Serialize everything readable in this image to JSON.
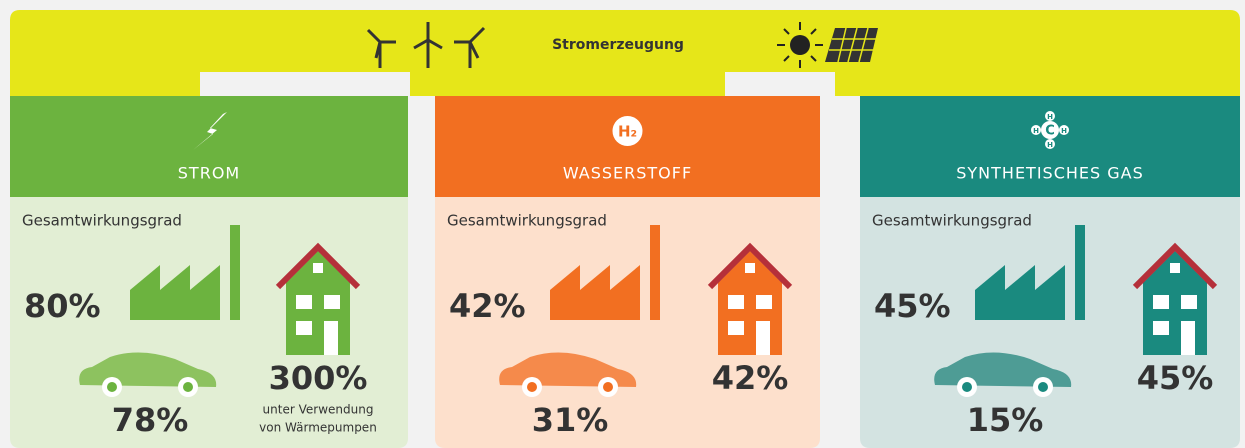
{
  "header": {
    "title": "Stromerzeugung"
  },
  "panels": [
    {
      "name": "STROM",
      "label": "Gesamtwirkungsgrad",
      "industry": "80%",
      "car": "78%",
      "house": "300%",
      "note": [
        "unter Verwendung",
        "von Wärmepumpen"
      ]
    },
    {
      "name": "WASSERSTOFF",
      "icon": "H₂",
      "label": "Gesamtwirkungsgrad",
      "industry": "42%",
      "car": "31%",
      "house": "42%"
    },
    {
      "name": "SYNTHETISCHES GAS",
      "molecule": [
        "C",
        "H",
        "H",
        "H",
        "H"
      ],
      "label": "Gesamtwirkungsgrad",
      "industry": "45%",
      "car": "15%",
      "house": "45%"
    }
  ]
}
